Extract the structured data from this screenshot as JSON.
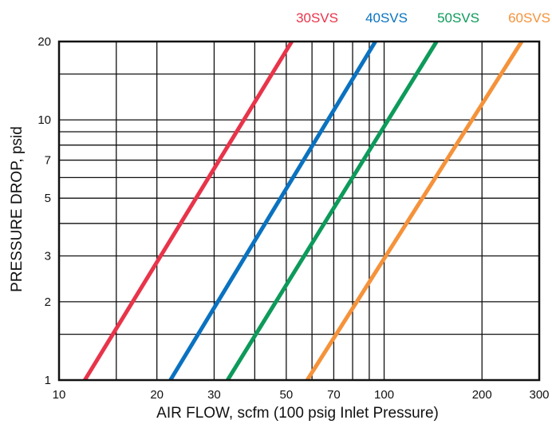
{
  "chart_data": {
    "type": "line",
    "x_scale": "log",
    "y_scale": "log",
    "xlim": [
      10,
      300
    ],
    "ylim": [
      1,
      20
    ],
    "grid": true,
    "legend_position": "top",
    "xlabel": "AIR FLOW, scfm (100 psig Inlet Pressure)",
    "ylabel": "PRESSURE DROP, psid",
    "x_ticks": [
      10,
      20,
      30,
      50,
      70,
      100,
      200,
      300
    ],
    "y_ticks": [
      1,
      2,
      3,
      5,
      7,
      10,
      20
    ],
    "x_grid": [
      10,
      15,
      20,
      30,
      40,
      50,
      60,
      70,
      80,
      90,
      100,
      200,
      300
    ],
    "y_grid": [
      1,
      1.5,
      2,
      3,
      4,
      5,
      6,
      7,
      8,
      9,
      10,
      15,
      20
    ],
    "series": [
      {
        "name": "30SVS",
        "color": "#e8344a",
        "x": [
          12,
          52
        ],
        "y": [
          1,
          20
        ]
      },
      {
        "name": "40SVS",
        "color": "#0a72c0",
        "x": [
          22,
          94
        ],
        "y": [
          1,
          20
        ]
      },
      {
        "name": "50SVS",
        "color": "#0d9a5a",
        "x": [
          33,
          145
        ],
        "y": [
          1,
          20
        ]
      },
      {
        "name": "60SVS",
        "color": "#f5923a",
        "x": [
          58,
          265
        ],
        "y": [
          1,
          20
        ]
      }
    ]
  }
}
